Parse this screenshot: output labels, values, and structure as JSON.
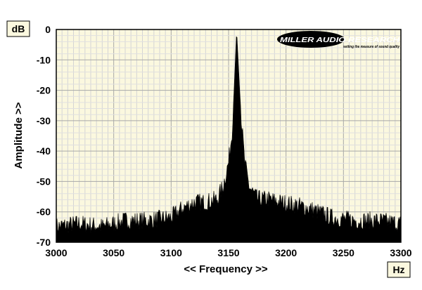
{
  "chart_data": {
    "type": "area",
    "xlabel": "<< Frequency >>",
    "ylabel": "Amplitude >>",
    "y_unit": "dB",
    "x_unit": "Hz",
    "xlim": [
      3000,
      3300
    ],
    "ylim": [
      -70,
      0
    ],
    "x_ticks": [
      "3000",
      "3050",
      "3100",
      "3150",
      "3200",
      "3250",
      "3300"
    ],
    "y_ticks": [
      "0",
      "-10",
      "-20",
      "-30",
      "-40",
      "-50",
      "-60",
      "-70"
    ],
    "grid": true,
    "background_color": "#fbf8df",
    "fill_color": "#000000",
    "logo": {
      "text": "MILLER AUDIO RESEARCH",
      "tagline": "setting the measure of sound quality"
    },
    "series": [
      {
        "x": [
          3000,
          3020,
          3040,
          3060,
          3080,
          3100,
          3110,
          3120,
          3130,
          3140,
          3145,
          3150,
          3153,
          3155,
          3157,
          3159,
          3161,
          3164,
          3168,
          3175,
          3185,
          3195,
          3210,
          3220,
          3240,
          3260,
          3280,
          3300
        ],
        "values": [
          -66,
          -65,
          -66,
          -64,
          -64,
          -63,
          -60,
          -58,
          -58,
          -57,
          -53,
          -45,
          -35,
          -18,
          0,
          -15,
          -30,
          -45,
          -53,
          -57,
          -57,
          -58,
          -59,
          -60,
          -63,
          -64,
          -64,
          -65
        ]
      }
    ]
  }
}
